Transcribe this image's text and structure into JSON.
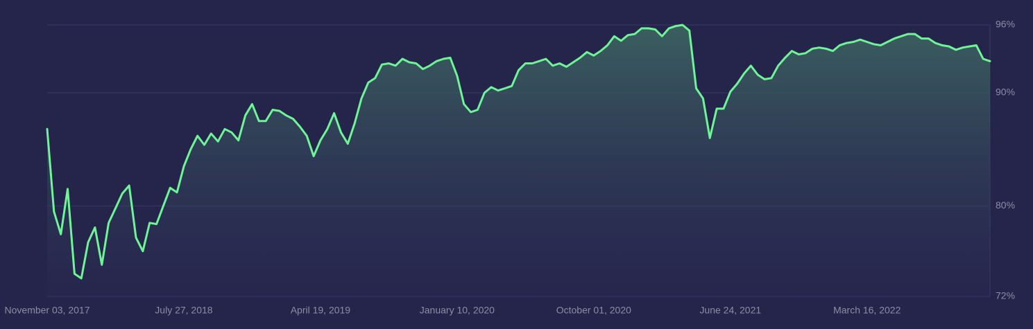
{
  "chart_data": {
    "type": "line",
    "categories": [
      "November 03, 2017",
      null,
      null,
      null,
      null,
      null,
      null,
      null,
      null,
      null,
      null,
      null,
      null,
      null,
      null,
      null,
      null,
      null,
      null,
      null,
      "July 27, 2018",
      null,
      null,
      null,
      null,
      null,
      null,
      null,
      null,
      null,
      null,
      null,
      null,
      null,
      null,
      null,
      null,
      null,
      null,
      null,
      "April 19, 2019",
      null,
      null,
      null,
      null,
      null,
      null,
      null,
      null,
      null,
      null,
      null,
      null,
      null,
      null,
      null,
      null,
      null,
      null,
      null,
      "January 10, 2020",
      null,
      null,
      null,
      null,
      null,
      null,
      null,
      null,
      null,
      null,
      null,
      null,
      null,
      null,
      null,
      null,
      null,
      null,
      null,
      "October 01, 2020",
      null,
      null,
      null,
      null,
      null,
      null,
      null,
      null,
      null,
      null,
      null,
      null,
      null,
      null,
      null,
      null,
      null,
      null,
      null,
      "June 24, 2021",
      null,
      null,
      null,
      null,
      null,
      null,
      null,
      null,
      null,
      null,
      null,
      null,
      null,
      null,
      null,
      null,
      null,
      null,
      null,
      "March 16, 2022",
      null,
      null,
      null,
      null,
      null,
      null,
      null,
      null,
      null,
      null,
      null,
      null,
      null,
      null,
      null,
      null,
      null,
      null
    ],
    "values": [
      86.8,
      79.5,
      77.5,
      81.5,
      74.0,
      73.6,
      76.8,
      78.1,
      74.8,
      78.5,
      79.8,
      81.1,
      81.8,
      77.2,
      76.0,
      78.5,
      78.4,
      80.0,
      81.6,
      81.2,
      83.5,
      85.0,
      86.2,
      85.4,
      86.4,
      85.7,
      86.8,
      86.5,
      85.8,
      88.0,
      89.0,
      87.5,
      87.5,
      88.5,
      88.4,
      88.0,
      87.7,
      87.0,
      86.2,
      84.4,
      85.8,
      86.8,
      88.2,
      86.5,
      85.5,
      87.3,
      89.5,
      90.9,
      91.3,
      92.5,
      92.6,
      92.4,
      93.0,
      92.7,
      92.6,
      92.1,
      92.4,
      92.8,
      93.0,
      93.1,
      91.5,
      89.0,
      88.3,
      88.5,
      90.0,
      90.5,
      90.2,
      90.4,
      90.6,
      92.0,
      92.6,
      92.6,
      92.8,
      93.0,
      92.4,
      92.6,
      92.3,
      92.7,
      93.1,
      93.6,
      93.3,
      93.7,
      94.2,
      95.0,
      94.6,
      95.1,
      95.2,
      95.7,
      95.7,
      95.6,
      95.0,
      95.7,
      95.9,
      96.0,
      95.5,
      90.4,
      89.5,
      86.0,
      88.6,
      88.6,
      90.1,
      90.8,
      91.7,
      92.4,
      91.6,
      91.2,
      91.3,
      92.4,
      93.1,
      93.7,
      93.4,
      93.5,
      93.9,
      94.0,
      93.9,
      93.7,
      94.2,
      94.4,
      94.5,
      94.7,
      94.5,
      94.3,
      94.2,
      94.5,
      94.8,
      95.0,
      95.2,
      95.2,
      94.8,
      94.8,
      94.4,
      94.2,
      94.1,
      93.8,
      94.0,
      94.1,
      94.2,
      93.0,
      92.8
    ],
    "color": "#6ef596",
    "ylim": [
      72,
      96
    ],
    "yticks": [
      {
        "value": 72,
        "label": "72%"
      },
      {
        "value": 80,
        "label": "80%"
      },
      {
        "value": 90,
        "label": "90%"
      },
      {
        "value": 96,
        "label": "96%"
      }
    ],
    "grid": true
  }
}
